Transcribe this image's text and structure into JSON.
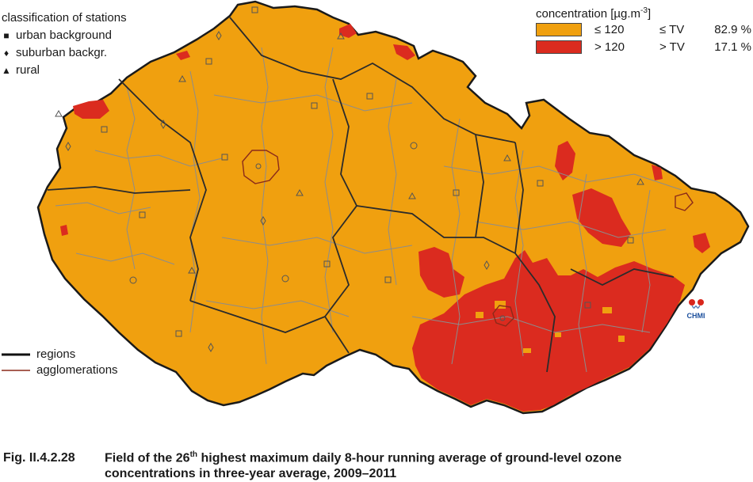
{
  "legend_stations": {
    "title": "classification of stations",
    "items": [
      {
        "symbol": "square-icon",
        "label": "urban background"
      },
      {
        "symbol": "diamond-icon",
        "label": "suburban backgr."
      },
      {
        "symbol": "triangle-icon",
        "label": "rural"
      }
    ]
  },
  "legend_concentration": {
    "title_text": "concentration [µg.m",
    "title_exp": "-3",
    "title_end": "]",
    "classes": [
      {
        "range": "≤ 120",
        "tv": "≤ TV",
        "percent": "82.9 %",
        "color": "#f0a00f"
      },
      {
        "range": "> 120",
        "tv": "> TV",
        "percent": "17.1 %",
        "color": "#db2b1f"
      }
    ]
  },
  "legend_boundaries": {
    "items": [
      {
        "label": "regions",
        "color": "#111111"
      },
      {
        "label": "agglomerations",
        "color": "#8b2a1a"
      }
    ]
  },
  "logo": {
    "text": "CHMI"
  },
  "caption": {
    "number": "Fig. II.4.2.28",
    "part1": "Field of the 26",
    "sup": "th",
    "part2": " highest maximum daily 8-hour running average of ground-level ozone",
    "line2": "concentrations in three-year average, 2009–2011"
  },
  "colors": {
    "below_tv": "#f0a00f",
    "above_tv": "#db2b1f",
    "district_border": "#8c8c8c",
    "region_border": "#1a1a1a"
  }
}
